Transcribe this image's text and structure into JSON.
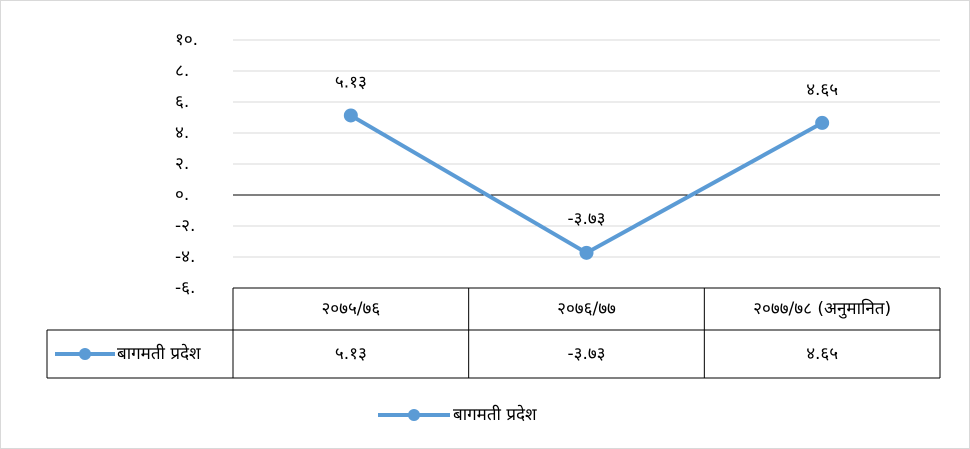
{
  "chart_data": {
    "type": "line",
    "categories": [
      "२०७५/७६",
      "२०७६/७७",
      "२०७७/७८ (अनुमानित)"
    ],
    "series": [
      {
        "name": "बागमती प्रदेश",
        "color": "#5b9bd5",
        "values": [
          5.13,
          -3.73,
          4.65
        ],
        "value_labels": [
          "५.१३",
          "-३.७३",
          "४.६५"
        ]
      }
    ],
    "ylim": [
      -6,
      10
    ],
    "yticks": [
      {
        "value": 10,
        "label": "१०."
      },
      {
        "value": 8,
        "label": "८."
      },
      {
        "value": 6,
        "label": "६."
      },
      {
        "value": 4,
        "label": "४."
      },
      {
        "value": 2,
        "label": "२."
      },
      {
        "value": 0,
        "label": "०."
      },
      {
        "value": -2,
        "label": "-२."
      },
      {
        "value": -4,
        "label": "-४."
      },
      {
        "value": -6,
        "label": "-६."
      }
    ],
    "grid": true,
    "legend": "bottom",
    "data_table": true
  }
}
